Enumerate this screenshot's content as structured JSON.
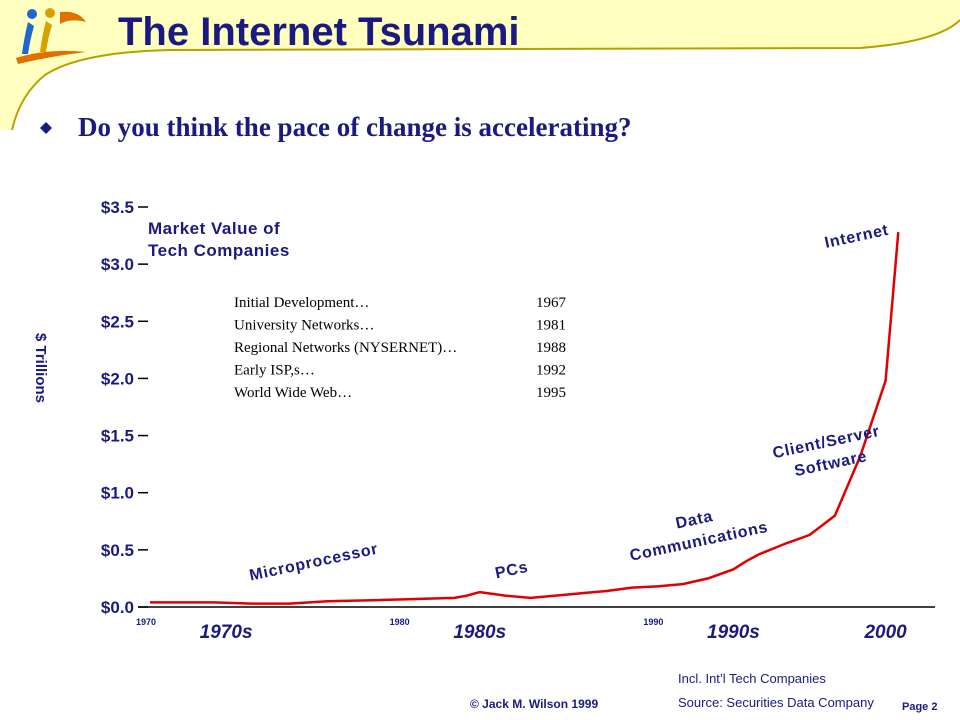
{
  "slide": {
    "title": "The Internet Tsunami",
    "question": "Do you think the pace of change is accelerating?",
    "copyright": "© Jack M. Wilson 1999",
    "page": "Page 2",
    "note1": "Incl. Int’l Tech Companies",
    "note2": "Source: Securities Data Company"
  },
  "colors": {
    "navy": "#1a1a80",
    "line": "#e00000",
    "banner": "#ffffc0",
    "banner_edge": "#b8a000"
  },
  "icons": {
    "logo": "people-logo-icon",
    "bullet": "diamond-bullet-icon"
  },
  "chart_data": {
    "type": "line",
    "title": "Market Value of Tech Companies",
    "ylabel": "$ Trillions",
    "ylim": [
      0,
      3.5
    ],
    "xlim": [
      1970,
      2000
    ],
    "y_ticks": [
      {
        "value": 0,
        "label": "$0.0"
      },
      {
        "value": 0.5,
        "label": "$0.5"
      },
      {
        "value": 1.0,
        "label": "$1.0"
      },
      {
        "value": 1.5,
        "label": "$1.5"
      },
      {
        "value": 2.0,
        "label": "$2.0"
      },
      {
        "value": 2.5,
        "label": "$2.5"
      },
      {
        "value": 3.0,
        "label": "$3.0"
      },
      {
        "value": 3.5,
        "label": "$3.5"
      }
    ],
    "x_ticks": [
      {
        "value": 1970,
        "label": "1970"
      },
      {
        "value": 1980,
        "label": "1980"
      },
      {
        "value": 1990,
        "label": "1990"
      }
    ],
    "decade_labels": [
      {
        "value": 1973,
        "label": "1970s"
      },
      {
        "value": 1983,
        "label": "1980s"
      },
      {
        "value": 1993,
        "label": "1990s"
      },
      {
        "value": 1999,
        "label": "2000"
      }
    ],
    "series": [
      {
        "x": [
          1970,
          1972.5,
          1974,
          1975.5,
          1977,
          1979,
          1980.5,
          1982,
          1982.5,
          1983,
          1984,
          1985,
          1986,
          1987,
          1988,
          1989,
          1990,
          1991,
          1992,
          1993,
          1993.5,
          1994,
          1995,
          1996,
          1997,
          1998,
          1999,
          1999.5
        ],
        "y": [
          0.04,
          0.04,
          0.03,
          0.03,
          0.05,
          0.06,
          0.07,
          0.08,
          0.1,
          0.13,
          0.1,
          0.08,
          0.1,
          0.12,
          0.14,
          0.17,
          0.18,
          0.2,
          0.25,
          0.33,
          0.4,
          0.46,
          0.55,
          0.63,
          0.8,
          1.32,
          1.98,
          3.28
        ]
      }
    ],
    "annotations": [
      {
        "lines": [
          "Microprocessor"
        ],
        "x": 1976.5,
        "y": 0.35,
        "angle": -12
      },
      {
        "lines": [
          "PCs"
        ],
        "x": 1984.3,
        "y": 0.28,
        "angle": -12
      },
      {
        "lines": [
          "Data",
          "Communications"
        ],
        "x": 1991.5,
        "y": 0.72,
        "angle": -12
      },
      {
        "lines": [
          "Client/Server",
          "Software"
        ],
        "x": 1996.7,
        "y": 1.4,
        "angle": -12
      },
      {
        "lines": [
          "Internet"
        ],
        "x": 1997.9,
        "y": 3.2,
        "angle": -12
      }
    ],
    "milestones": [
      {
        "label": "Initial Development…",
        "year": "1967"
      },
      {
        "label": "University Networks…",
        "year": "1981"
      },
      {
        "label": "Regional Networks (NYSERNET)…",
        "year": "1988"
      },
      {
        "label": "Early ISP,s…",
        "year": "1992"
      },
      {
        "label": "World Wide Web…",
        "year": "1995"
      }
    ]
  }
}
